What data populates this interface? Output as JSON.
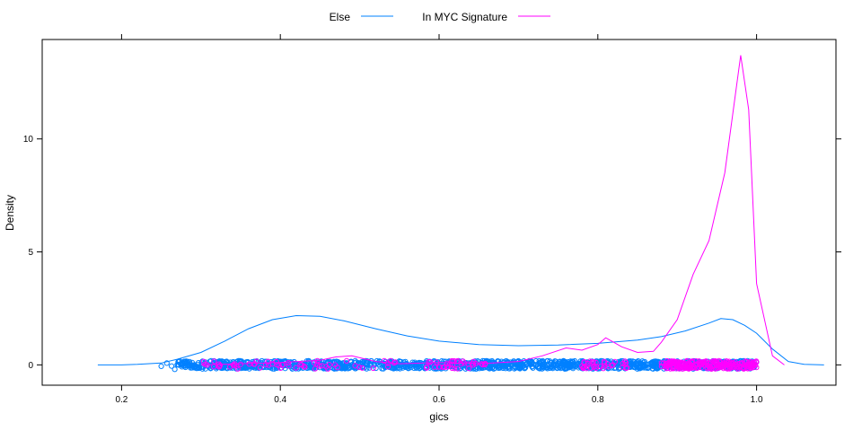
{
  "chart_data": {
    "type": "line",
    "xlabel": "gics",
    "ylabel": "Density",
    "xlim": [
      0.1,
      1.1
    ],
    "ylim": [
      -0.9,
      14.4
    ],
    "x_ticks": [
      0.2,
      0.4,
      0.6,
      0.8,
      1.0
    ],
    "x_tick_labels": [
      "0.2",
      "0.4",
      "0.6",
      "0.8",
      "1.0"
    ],
    "y_ticks": [
      0,
      5,
      10
    ],
    "y_tick_labels": [
      "0",
      "5",
      "10"
    ],
    "legend_position": "top-center",
    "grid": false,
    "rug": {
      "description": "raw data points jittered near y = 0",
      "series": [
        {
          "series_index": 0,
          "x_min": 0.25,
          "x_max": 1.0,
          "dense_from": 0.27
        },
        {
          "series_index": 1,
          "x_min": 0.3,
          "x_max": 1.0,
          "clusters": [
            [
              0.3,
              0.55
            ],
            [
              0.57,
              0.66
            ],
            [
              0.78,
              0.84
            ],
            [
              0.88,
              1.0
            ]
          ]
        }
      ]
    },
    "series": [
      {
        "name": "Else",
        "color": "#0080ff",
        "x": [
          0.17,
          0.2,
          0.22,
          0.25,
          0.27,
          0.3,
          0.33,
          0.36,
          0.39,
          0.42,
          0.45,
          0.48,
          0.52,
          0.56,
          0.6,
          0.65,
          0.7,
          0.75,
          0.8,
          0.85,
          0.88,
          0.91,
          0.94,
          0.955,
          0.97,
          0.985,
          1.0,
          1.02,
          1.04,
          1.06,
          1.085
        ],
        "values": [
          0.0,
          0.0,
          0.02,
          0.08,
          0.25,
          0.55,
          1.05,
          1.6,
          2.0,
          2.18,
          2.15,
          1.95,
          1.6,
          1.28,
          1.05,
          0.9,
          0.85,
          0.88,
          0.95,
          1.1,
          1.25,
          1.5,
          1.85,
          2.05,
          2.0,
          1.75,
          1.4,
          0.7,
          0.15,
          0.02,
          0.0
        ]
      },
      {
        "name": "In MYC Signature",
        "color": "#ff00ff",
        "x": [
          0.3,
          0.35,
          0.4,
          0.45,
          0.47,
          0.49,
          0.52,
          0.55,
          0.6,
          0.65,
          0.7,
          0.73,
          0.76,
          0.78,
          0.8,
          0.81,
          0.82,
          0.83,
          0.85,
          0.87,
          0.88,
          0.9,
          0.92,
          0.94,
          0.96,
          0.98,
          0.99,
          1.0,
          1.02,
          1.035
        ],
        "values": [
          0.0,
          0.05,
          0.1,
          0.2,
          0.35,
          0.4,
          0.15,
          0.05,
          0.1,
          0.05,
          0.15,
          0.4,
          0.75,
          0.65,
          0.9,
          1.2,
          1.0,
          0.8,
          0.55,
          0.6,
          1.0,
          2.0,
          4.0,
          5.5,
          8.5,
          13.7,
          11.3,
          3.6,
          0.4,
          0.0
        ]
      }
    ]
  }
}
